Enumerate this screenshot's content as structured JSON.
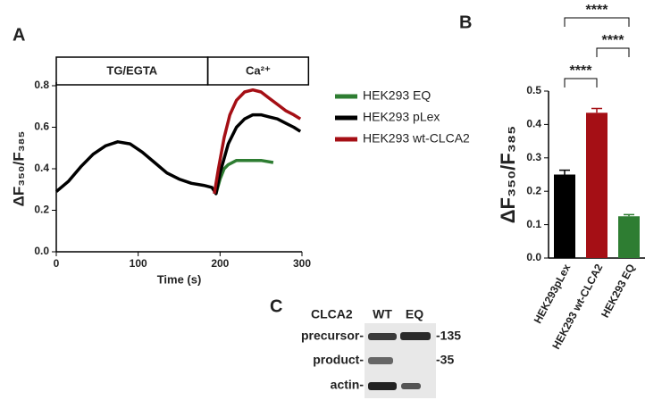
{
  "chart_data": [
    {
      "type": "line",
      "panel_label": "A",
      "xlabel": "Time (s)",
      "ylabel": "ΔF₃₅₀/F₃₈₅",
      "xlim": [
        0,
        300
      ],
      "xticks": [
        0,
        100,
        200,
        300
      ],
      "ylim": [
        0,
        0.8
      ],
      "yticks": [
        {
          "value": 0,
          "label": "0.0"
        },
        {
          "value": 0.2,
          "label": "0.2"
        },
        {
          "value": 0.4,
          "label": "0.4"
        },
        {
          "value": 0.6,
          "label": "0.6"
        },
        {
          "value": 0.8,
          "label": "0.8"
        }
      ],
      "phases": [
        {
          "label": "TG/EGTA",
          "start": 0,
          "end": 185
        },
        {
          "label": "Ca²⁺",
          "start": 185,
          "end": 308
        }
      ],
      "series": [
        {
          "name": "HEK293 EQ",
          "color": "#2e7d32",
          "x": [
            195,
            200,
            205,
            210,
            220,
            230,
            240,
            250,
            265
          ],
          "values": [
            0.28,
            0.35,
            0.4,
            0.42,
            0.44,
            0.44,
            0.44,
            0.44,
            0.43
          ]
        },
        {
          "name": "HEK293 pLex",
          "color": "#000000",
          "x": [
            0,
            15,
            30,
            45,
            60,
            75,
            90,
            105,
            120,
            135,
            150,
            165,
            180,
            190,
            195,
            200,
            210,
            220,
            230,
            240,
            250,
            260,
            270,
            280,
            290,
            298
          ],
          "values": [
            0.29,
            0.34,
            0.41,
            0.47,
            0.51,
            0.53,
            0.52,
            0.48,
            0.43,
            0.38,
            0.35,
            0.33,
            0.32,
            0.31,
            0.28,
            0.38,
            0.52,
            0.6,
            0.64,
            0.66,
            0.66,
            0.65,
            0.64,
            0.62,
            0.6,
            0.58
          ]
        },
        {
          "name": "HEK293 wt-CLCA2",
          "color": "#a50f15",
          "x": [
            193,
            198,
            205,
            212,
            220,
            230,
            240,
            250,
            260,
            270,
            280,
            290,
            298
          ],
          "values": [
            0.28,
            0.4,
            0.55,
            0.66,
            0.73,
            0.77,
            0.78,
            0.77,
            0.74,
            0.71,
            0.68,
            0.66,
            0.64
          ]
        }
      ]
    },
    {
      "type": "bar",
      "panel_label": "B",
      "ylabel": "ΔF₃₅₀/F₃₈₅",
      "categories": [
        "HEK293pLex",
        "HEK293 wt-CLCA2",
        "HEK293 EQ"
      ],
      "values": [
        0.25,
        0.435,
        0.125
      ],
      "errors": [
        0.013,
        0.013,
        0.005
      ],
      "colors": [
        "#000000",
        "#a50f15",
        "#2e7d32"
      ],
      "ylim": [
        0,
        0.5
      ],
      "yticks": [
        {
          "value": 0,
          "label": "0.0"
        },
        {
          "value": 0.1,
          "label": "0.1"
        },
        {
          "value": 0.2,
          "label": "0.2"
        },
        {
          "value": 0.3,
          "label": "0.3"
        },
        {
          "value": 0.4,
          "label": "0.4"
        },
        {
          "value": 0.5,
          "label": "0.5"
        }
      ],
      "significance": [
        {
          "pair": [
            0,
            1
          ],
          "label": "****"
        },
        {
          "pair": [
            1,
            2
          ],
          "label": "****"
        },
        {
          "pair": [
            0,
            2
          ],
          "label": "****"
        }
      ]
    }
  ],
  "blot": {
    "panel_label": "C",
    "protein": "CLCA2",
    "lanes": [
      "WT",
      "EQ"
    ],
    "rows": [
      "precursor-",
      "product-",
      "actin-"
    ],
    "markers": [
      "-135",
      "-35"
    ]
  }
}
